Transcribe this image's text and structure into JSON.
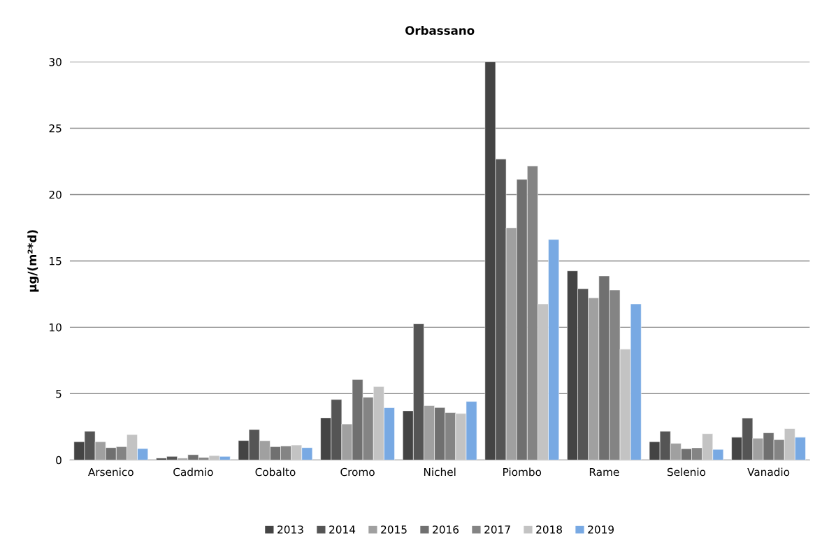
{
  "chart_data": {
    "type": "bar",
    "title": "Orbassano",
    "ylabel": "µg/(m²*d)",
    "categories": [
      "Arsenico",
      "Cadmio",
      "Cobalto",
      "Cromo",
      "Nichel",
      "Piombo",
      "Rame",
      "Selenio",
      "Vanadio"
    ],
    "series": [
      {
        "name": "2013",
        "color": "#444444",
        "values": [
          1.38,
          0.14,
          1.46,
          3.18,
          3.71,
          30,
          14.25,
          1.38,
          1.71
        ]
      },
      {
        "name": "2014",
        "color": "#555555",
        "values": [
          2.17,
          0.27,
          2.3,
          4.56,
          10.26,
          22.67,
          12.9,
          2.17,
          3.16
        ]
      },
      {
        "name": "2015",
        "color": "#a0a0a0",
        "values": [
          1.38,
          0.14,
          1.45,
          2.7,
          4.1,
          17.5,
          12.22,
          1.25,
          1.64
        ]
      },
      {
        "name": "2016",
        "color": "#707070",
        "values": [
          0.93,
          0.4,
          1.0,
          6.06,
          3.95,
          21.15,
          13.87,
          0.85,
          2.05
        ]
      },
      {
        "name": "2017",
        "color": "#848484",
        "values": [
          1.0,
          0.19,
          1.06,
          4.73,
          3.57,
          22.15,
          12.81,
          0.92,
          1.53
        ]
      },
      {
        "name": "2018",
        "color": "#c3c3c3",
        "values": [
          1.92,
          0.33,
          1.12,
          5.53,
          3.5,
          11.76,
          8.35,
          1.98,
          2.36
        ]
      },
      {
        "name": "2019",
        "color": "#78a9e3",
        "values": [
          0.86,
          0.27,
          0.93,
          3.94,
          4.41,
          16.62,
          11.76,
          0.8,
          1.71
        ]
      }
    ],
    "ylim": [
      0,
      30
    ],
    "yticks": [
      0,
      5,
      10,
      15,
      20,
      25,
      30
    ],
    "grid": "y",
    "legend": "bottom"
  }
}
